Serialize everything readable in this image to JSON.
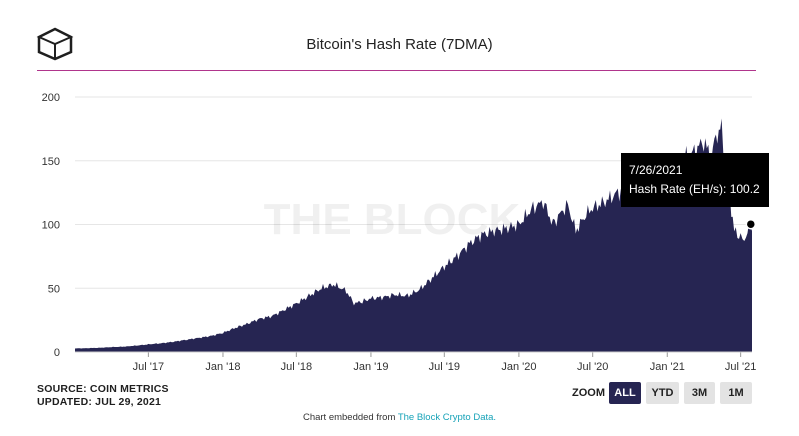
{
  "header": {
    "title": "Bitcoin's Hash Rate (7DMA)",
    "logo_icon": "the-block-cube-logo"
  },
  "watermark": "THE BLOCK",
  "colors": {
    "area": "#262552",
    "rule": "#b0358c",
    "grid": "#e6e6e6",
    "link": "#17a3b8",
    "tooltip_bg": "#000000"
  },
  "footer": {
    "source": "SOURCE: COIN METRICS",
    "updated": "UPDATED: JUL 29, 2021"
  },
  "zoom": {
    "label": "ZOOM",
    "options": [
      "ALL",
      "YTD",
      "3M",
      "1M"
    ],
    "selected": "ALL"
  },
  "embed": {
    "prefix": "Chart embedded from ",
    "link_text": "The Block Crypto Data."
  },
  "tooltip": {
    "date": "7/26/2021",
    "text": "Hash Rate (EH/s): 100.2"
  },
  "chart_data": {
    "type": "area",
    "title": "Bitcoin's Hash Rate (7DMA)",
    "xlabel": "",
    "ylabel": "",
    "x_range": [
      "2017-01-01",
      "2021-07-29"
    ],
    "ylim": [
      0,
      200
    ],
    "y_ticks": [
      0,
      50,
      100,
      150,
      200
    ],
    "x_ticks": [
      {
        "date": "2017-07-01",
        "label": "Jul '17"
      },
      {
        "date": "2018-01-01",
        "label": "Jan '18"
      },
      {
        "date": "2018-07-01",
        "label": "Jul '18"
      },
      {
        "date": "2019-01-01",
        "label": "Jan '19"
      },
      {
        "date": "2019-07-01",
        "label": "Jul '19"
      },
      {
        "date": "2020-01-01",
        "label": "Jan '20"
      },
      {
        "date": "2020-07-01",
        "label": "Jul '20"
      },
      {
        "date": "2021-01-01",
        "label": "Jan '21"
      },
      {
        "date": "2021-07-01",
        "label": "Jul '21"
      }
    ],
    "grid": "horizontal",
    "series": [
      {
        "x": [
          "2017-01-01",
          "2017-02-01",
          "2017-03-01",
          "2017-04-01",
          "2017-05-01",
          "2017-06-01",
          "2017-07-01",
          "2017-08-01",
          "2017-09-01",
          "2017-10-01",
          "2017-11-01",
          "2017-12-01",
          "2018-01-01",
          "2018-02-01",
          "2018-03-01",
          "2018-04-01",
          "2018-05-01",
          "2018-06-01",
          "2018-07-01",
          "2018-08-01",
          "2018-09-01",
          "2018-10-01",
          "2018-11-01",
          "2018-11-20",
          "2018-12-15",
          "2019-01-01",
          "2019-02-01",
          "2019-03-01",
          "2019-04-01",
          "2019-05-01",
          "2019-06-01",
          "2019-07-01",
          "2019-08-01",
          "2019-09-01",
          "2019-10-01",
          "2019-11-01",
          "2019-12-01",
          "2020-01-01",
          "2020-02-01",
          "2020-03-01",
          "2020-03-25",
          "2020-04-15",
          "2020-05-01",
          "2020-05-20",
          "2020-06-15",
          "2020-07-01",
          "2020-08-01",
          "2020-09-01",
          "2020-10-01",
          "2020-11-01",
          "2020-12-01",
          "2021-01-01",
          "2021-02-01",
          "2021-03-01",
          "2021-04-01",
          "2021-04-20",
          "2021-05-01",
          "2021-05-15",
          "2021-06-01",
          "2021-06-15",
          "2021-07-01",
          "2021-07-10",
          "2021-07-26",
          "2021-07-29"
        ],
        "values": [
          2.8,
          3.0,
          3.3,
          3.8,
          4.2,
          5.0,
          6.0,
          6.8,
          8.0,
          9.5,
          11.0,
          12.5,
          15.0,
          19.0,
          22.0,
          26.0,
          28.0,
          33.0,
          38.0,
          44.0,
          50.0,
          53.0,
          48.0,
          38.0,
          40.0,
          42.0,
          43.0,
          45.0,
          44.0,
          49.0,
          58.0,
          67.0,
          75.0,
          85.0,
          92.0,
          95.0,
          97.0,
          100.0,
          112.0,
          118.0,
          100.0,
          110.0,
          115.0,
          95.0,
          108.0,
          113.0,
          118.0,
          125.0,
          128.0,
          125.0,
          130.0,
          135.0,
          150.0,
          155.0,
          165.0,
          152.0,
          170.0,
          175.0,
          130.0,
          95.0,
          90.0,
          88.0,
          100.2,
          95.0
        ]
      }
    ]
  }
}
